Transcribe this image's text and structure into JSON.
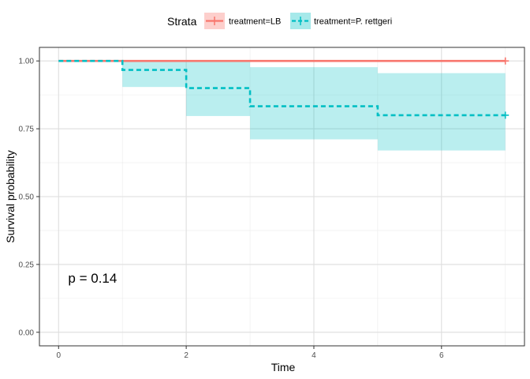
{
  "chart_data": {
    "type": "kaplan-meier",
    "xlabel": "Time",
    "ylabel": "Survival probability",
    "xlim": [
      -0.3,
      7.3
    ],
    "ylim": [
      -0.05,
      1.05
    ],
    "x_ticks": [
      0,
      2,
      4,
      6
    ],
    "y_ticks": [
      0,
      0.25,
      0.5,
      0.75,
      1.0
    ],
    "x_tick_labels": [
      "0",
      "2",
      "4",
      "6"
    ],
    "y_tick_labels": [
      "0.00",
      "0.25",
      "0.50",
      "0.75",
      "1.00"
    ],
    "grid": true,
    "legend": {
      "title": "Strata",
      "position": "top",
      "entries": [
        "treatment=LB",
        "treatment=P. rettgeri"
      ]
    },
    "annotation": {
      "text": "p = 0.14",
      "x": 0.15,
      "y": 0.2
    },
    "series": [
      {
        "name": "treatment=LB",
        "color": "#F8766D",
        "line_style": "solid",
        "steps": [
          {
            "x": 0,
            "y": 1.0,
            "lower": 1.0,
            "upper": 1.0
          }
        ],
        "end_x": 7,
        "censor_x": [
          7
        ]
      },
      {
        "name": "treatment=P. rettgeri",
        "color": "#00BFC4",
        "line_style": "dashed",
        "steps": [
          {
            "x": 0,
            "y": 1.0,
            "lower": 1.0,
            "upper": 1.0
          },
          {
            "x": 1,
            "y": 0.967,
            "lower": 0.904,
            "upper": 1.0
          },
          {
            "x": 2,
            "y": 0.9,
            "lower": 0.797,
            "upper": 1.0
          },
          {
            "x": 3,
            "y": 0.833,
            "lower": 0.711,
            "upper": 0.977
          },
          {
            "x": 5,
            "y": 0.8,
            "lower": 0.67,
            "upper": 0.955
          }
        ],
        "end_x": 7,
        "censor_x": [
          7
        ]
      }
    ]
  }
}
